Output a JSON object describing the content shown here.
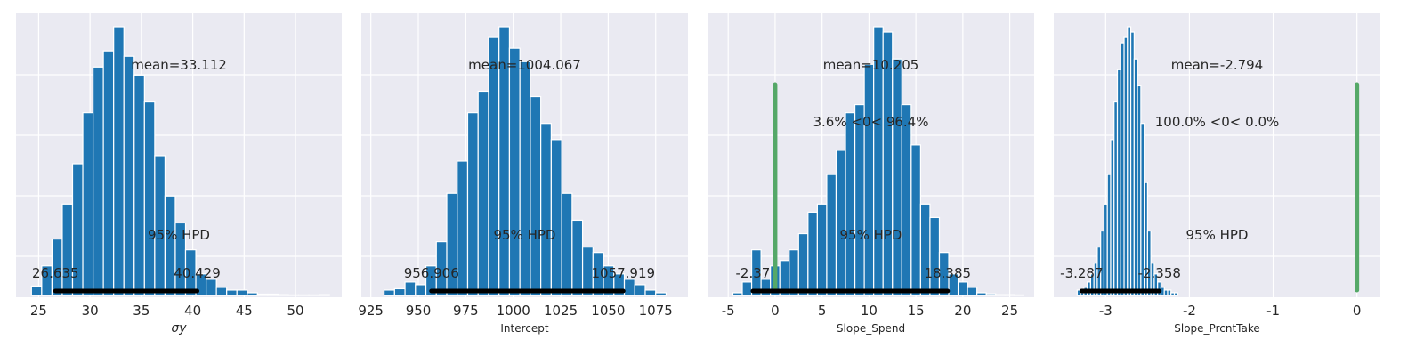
{
  "colors": {
    "background": "#eaeaf2",
    "grid": "#ffffff",
    "bar": "#1f77b4",
    "bar_edge": "#ffffff",
    "hpd_line": "#000000",
    "ref_line": "#55a868",
    "text": "#262626"
  },
  "chart_data": [
    {
      "type": "bar",
      "xlabel": "σy",
      "xlim": [
        22.8,
        54.5
      ],
      "xticks": [
        "25",
        "30",
        "35",
        "40",
        "45",
        "50"
      ],
      "bins": {
        "start": 24.3,
        "width": 1.0,
        "counts": [
          0.035,
          0.11,
          0.21,
          0.34,
          0.49,
          0.68,
          0.85,
          0.91,
          1.0,
          0.89,
          0.82,
          0.72,
          0.52,
          0.37,
          0.27,
          0.17,
          0.08,
          0.06,
          0.03,
          0.02,
          0.02,
          0.01,
          0.005,
          0.005,
          0.003,
          0.002,
          0.002,
          0.002,
          0.003
        ]
      },
      "mean_label": "mean=33.112",
      "hpd_label": "95% HPD",
      "hpd": [
        26.635,
        40.429
      ],
      "hpd_lower_label": "26.635",
      "hpd_upper_label": "40.429"
    },
    {
      "type": "bar",
      "xlabel": "Intercept",
      "xlim": [
        920,
        1092
      ],
      "xticks": [
        "925",
        "950",
        "975",
        "1000",
        "1025",
        "1050",
        "1075"
      ],
      "bins": {
        "start": 932,
        "width": 5.5,
        "counts": [
          0.02,
          0.025,
          0.05,
          0.04,
          0.11,
          0.2,
          0.38,
          0.5,
          0.68,
          0.76,
          0.96,
          1.0,
          0.92,
          0.87,
          0.74,
          0.64,
          0.58,
          0.38,
          0.28,
          0.18,
          0.16,
          0.11,
          0.08,
          0.06,
          0.04,
          0.02,
          0.01
        ]
      },
      "mean_label": "mean=1004.067",
      "hpd_label": "95% HPD",
      "hpd": [
        956.906,
        1057.919
      ],
      "hpd_lower_label": "956.906",
      "hpd_upper_label": "1057.919"
    },
    {
      "type": "bar",
      "xlabel": "Slope_Spend",
      "xlim": [
        -7.2,
        27.6
      ],
      "xticks": [
        "-5",
        "0",
        "5",
        "10",
        "15",
        "20",
        "25"
      ],
      "bins": {
        "start": -4.5,
        "width": 1.0,
        "counts": [
          0.01,
          0.05,
          0.17,
          0.06,
          0.11,
          0.13,
          0.17,
          0.23,
          0.31,
          0.34,
          0.45,
          0.54,
          0.68,
          0.71,
          0.86,
          1.0,
          0.98,
          0.88,
          0.71,
          0.56,
          0.34,
          0.29,
          0.16,
          0.08,
          0.05,
          0.03,
          0.01,
          0.006,
          0.003,
          0.003,
          0.002
        ]
      },
      "ref_value": 0,
      "ref_label": "3.6% <0< 96.4%",
      "mean_label": "mean=10.205",
      "hpd_label": "95% HPD",
      "hpd": [
        -2.37,
        18.385
      ],
      "hpd_lower_label": "-2.37",
      "hpd_upper_label": "18.385"
    },
    {
      "type": "bar",
      "xlabel": "Slope_PrcntTake",
      "xlim": [
        -3.62,
        0.28
      ],
      "xticks": [
        "-3",
        "-2",
        "-1",
        "0"
      ],
      "bins": {
        "start": -3.34,
        "width": 0.04,
        "counts": [
          0.02,
          0.01,
          0.03,
          0.05,
          0.08,
          0.12,
          0.18,
          0.24,
          0.34,
          0.45,
          0.58,
          0.72,
          0.84,
          0.94,
          0.96,
          1.0,
          0.98,
          0.88,
          0.78,
          0.64,
          0.42,
          0.24,
          0.12,
          0.08,
          0.05,
          0.03,
          0.02,
          0.02,
          0.01,
          0.01
        ]
      },
      "ref_value": 0,
      "ref_label": "100.0% <0< 0.0%",
      "mean_label": "mean=-2.794",
      "hpd_label": "95% HPD",
      "hpd": [
        -3.287,
        -2.358
      ],
      "hpd_lower_label": "-3.287",
      "hpd_upper_label": "-2.358"
    }
  ]
}
